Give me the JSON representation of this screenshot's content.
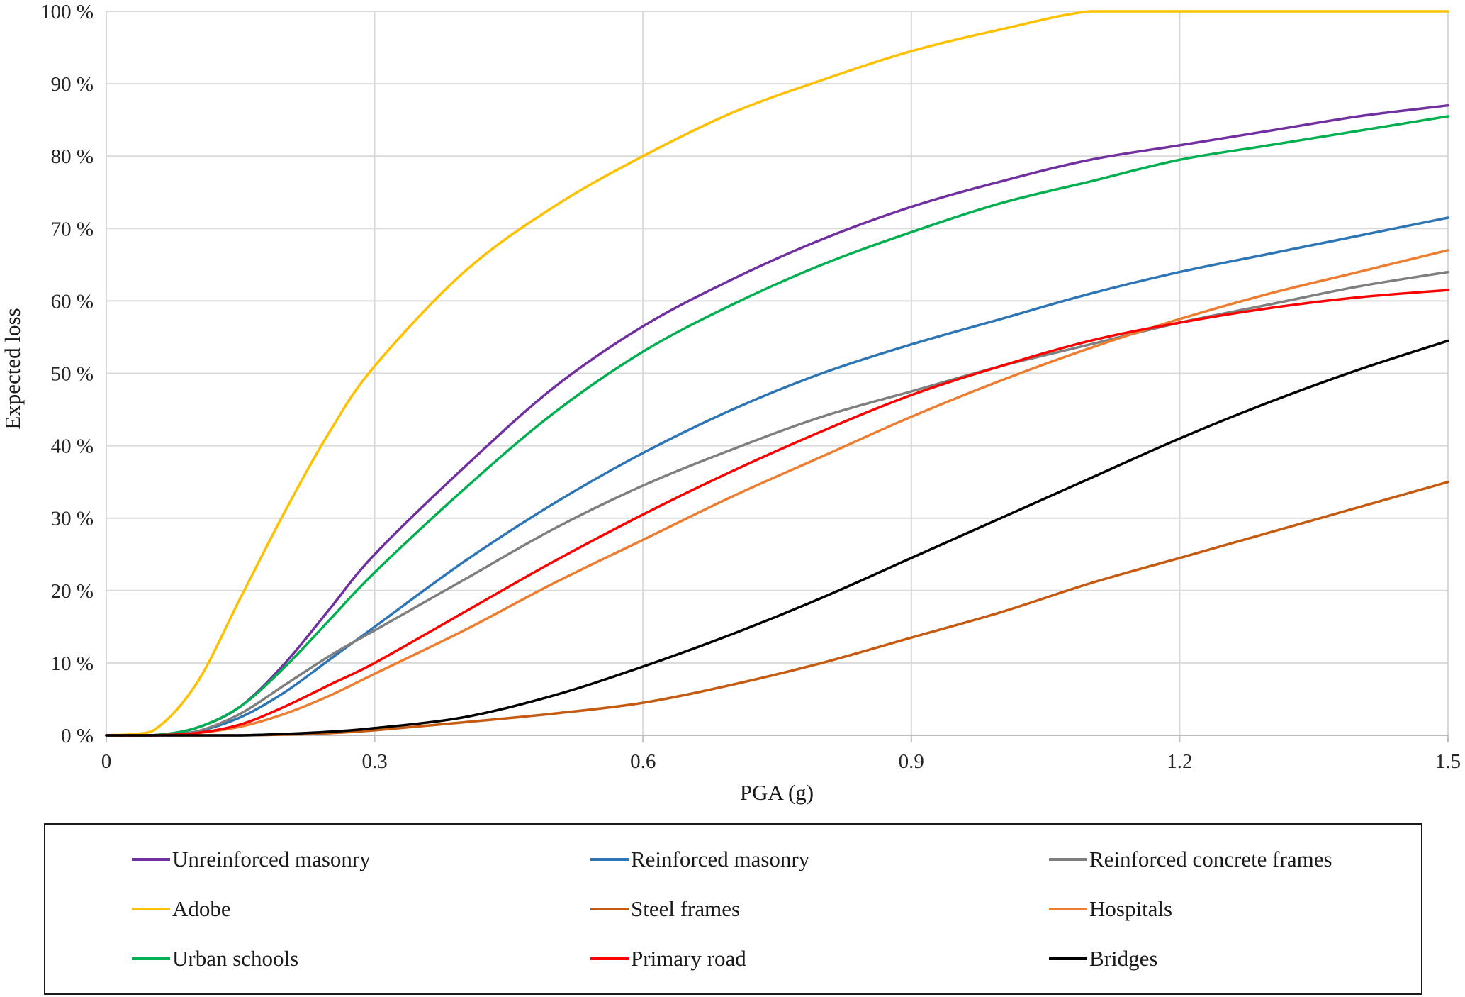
{
  "chart_data": {
    "type": "line",
    "title": "",
    "xlabel": "PGA (g)",
    "ylabel": "Expected loss",
    "xlim": [
      0,
      1.5
    ],
    "ylim": [
      0,
      100
    ],
    "grid": true,
    "legend_position": "bottom",
    "x_ticks": [
      0,
      0.3,
      0.6,
      0.9,
      1.2,
      1.5
    ],
    "x_tick_labels": [
      "0",
      "0.3",
      "0.6",
      "0.9",
      "1.2",
      "1.5"
    ],
    "y_ticks": [
      0,
      10,
      20,
      30,
      40,
      50,
      60,
      70,
      80,
      90,
      100
    ],
    "y_tick_labels": [
      "0 %",
      "10 %",
      "20 %",
      "30 %",
      "40 %",
      "50 %",
      "60 %",
      "70 %",
      "80 %",
      "90 %",
      "100 %"
    ],
    "x": [
      0,
      0.05,
      0.1,
      0.15,
      0.2,
      0.25,
      0.3,
      0.4,
      0.5,
      0.6,
      0.7,
      0.8,
      0.9,
      1.0,
      1.1,
      1.2,
      1.3,
      1.4,
      1.5
    ],
    "series": [
      {
        "name": "Unreinforced masonry",
        "color": "#7030A0",
        "values": [
          0,
          0,
          1,
          4,
          10,
          17.5,
          25,
          37,
          48,
          56.5,
          63,
          68.5,
          73,
          76.5,
          79.5,
          81.5,
          83.5,
          85.5,
          87
        ]
      },
      {
        "name": "Reinforced masonry",
        "color": "#2E75B6",
        "values": [
          0,
          0,
          0.5,
          2.5,
          6,
          10.5,
          15,
          24,
          32,
          39,
          45,
          50,
          54,
          57.5,
          61,
          64,
          66.5,
          69,
          71.5
        ]
      },
      {
        "name": "Reinforced concrete frames",
        "color": "#7F7F7F",
        "values": [
          0,
          0,
          0.5,
          3,
          7,
          11,
          14.5,
          21.5,
          28.5,
          34.5,
          39.5,
          44,
          47.5,
          51,
          54,
          57,
          59.5,
          62,
          64
        ]
      },
      {
        "name": "Adobe",
        "color": "#FFC000",
        "values": [
          0,
          0.5,
          7,
          19,
          31,
          42,
          51,
          64,
          73,
          80,
          86,
          90.5,
          94.5,
          97.5,
          100,
          100,
          100,
          100,
          100
        ]
      },
      {
        "name": "Steel frames",
        "color": "#C55A11",
        "values": [
          0,
          0,
          0,
          0,
          0.1,
          0.3,
          0.7,
          1.8,
          3,
          4.5,
          7,
          10,
          13.5,
          17,
          21,
          24.5,
          28,
          31.5,
          35
        ]
      },
      {
        "name": "Hospitals",
        "color": "#ED7D31",
        "values": [
          0,
          0,
          0.3,
          1.2,
          3,
          5.5,
          8.5,
          14.5,
          21,
          27,
          33,
          38.5,
          44,
          49,
          53.5,
          57.5,
          61,
          64,
          67
        ]
      },
      {
        "name": "Urban schools",
        "color": "#00B050",
        "values": [
          0,
          0,
          1,
          4,
          9.5,
          16,
          22.5,
          34,
          44.5,
          53,
          59.5,
          65,
          69.5,
          73.5,
          76.5,
          79.5,
          81.5,
          83.5,
          85.5
        ]
      },
      {
        "name": "Primary road",
        "color": "#FF0000",
        "values": [
          0,
          0,
          0.3,
          1.5,
          4,
          7,
          10,
          17,
          24,
          30.5,
          36.5,
          42,
          47,
          51,
          54.5,
          57,
          59,
          60.5,
          61.5
        ]
      },
      {
        "name": "Bridges",
        "color": "#000000",
        "values": [
          0,
          0,
          0,
          0,
          0.2,
          0.5,
          1,
          2.5,
          5.5,
          9.5,
          14,
          19,
          24.5,
          30,
          35.5,
          41,
          46,
          50.5,
          54.5
        ]
      }
    ],
    "legend_order": [
      "Unreinforced masonry",
      "Reinforced masonry",
      "Reinforced concrete frames",
      "Adobe",
      "Steel frames",
      "Hospitals",
      "Urban schools",
      "Primary road",
      "Bridges"
    ],
    "grid_color": "#D9D9D9",
    "axis_color": "#BFBFBF"
  }
}
